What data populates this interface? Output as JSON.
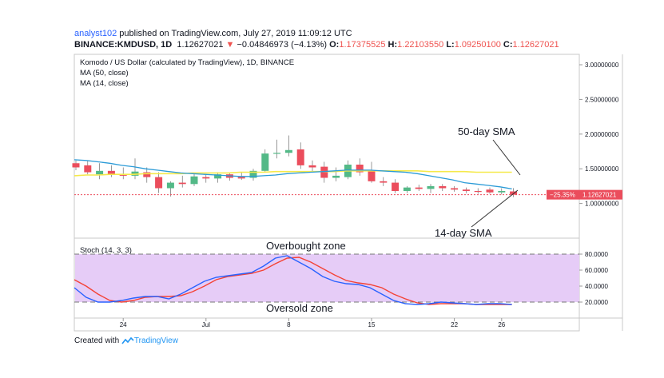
{
  "header": {
    "author": "analyst102",
    "published_text": " published on TradingView.com, July 27, 2019 11:09:12 UTC",
    "symbol": "BINANCE:KMDUSD, 1D",
    "last": "1.12627021",
    "change_arrow": "▼",
    "change": "−0.04846973 (−4.13%)",
    "o_label": "O:",
    "o": "1.17375525",
    "h_label": "H:",
    "h": "1.22103550",
    "l_label": "L:",
    "l": "1.09250100",
    "c_label": "C:",
    "c": "1.12627021"
  },
  "legend": {
    "title": "Komodo / US Dollar (calculated by TradingView), 1D, BINANCE",
    "ma50": "MA (50, close)",
    "ma14": "MA (14, close)",
    "stoch": "Stoch (14, 3, 3)"
  },
  "annotations": {
    "sma50": "50-day SMA",
    "sma14": "14-day SMA",
    "overbought": "Overbought zone",
    "oversold": "Oversold zone"
  },
  "price_tags": {
    "pct": "−25.35%",
    "price": "1.12627021"
  },
  "footer": {
    "created_with": "Created with",
    "brand": "TradingView"
  },
  "colors": {
    "up": "#53b987",
    "down": "#eb4d5c",
    "ma50": "#f5e94a",
    "ma14": "#2b9bd7",
    "stoch_k": "#2962ff",
    "stoch_d": "#f44336",
    "stoch_bg": "#e6ccf7",
    "lastline": "#eb4d5c"
  },
  "chart_data": [
    {
      "type": "candlestick",
      "title": "Komodo / US Dollar (calculated by TradingView), 1D, BINANCE",
      "x_ticks": [
        "24",
        "Jul",
        "8",
        "15",
        "22",
        "26"
      ],
      "y_ticks": [
        "1.00000000",
        "1.50000000",
        "2.00000000",
        "2.50000000",
        "3.00000000"
      ],
      "ylim": [
        0.5,
        3.15
      ],
      "last_price": 1.12627021,
      "candles": [
        {
          "d": "Jun 20",
          "o": 1.58,
          "h": 1.62,
          "l": 1.48,
          "c": 1.52
        },
        {
          "d": "Jun 21",
          "o": 1.55,
          "h": 1.62,
          "l": 1.42,
          "c": 1.45
        },
        {
          "d": "Jun 22",
          "o": 1.42,
          "h": 1.58,
          "l": 1.35,
          "c": 1.47
        },
        {
          "d": "Jun 23",
          "o": 1.47,
          "h": 1.55,
          "l": 1.38,
          "c": 1.42
        },
        {
          "d": "Jun 24",
          "o": 1.42,
          "h": 1.52,
          "l": 1.35,
          "c": 1.4
        },
        {
          "d": "Jun 25",
          "o": 1.4,
          "h": 1.65,
          "l": 1.35,
          "c": 1.46
        },
        {
          "d": "Jun 26",
          "o": 1.45,
          "h": 1.52,
          "l": 1.3,
          "c": 1.38
        },
        {
          "d": "Jun 27",
          "o": 1.38,
          "h": 1.45,
          "l": 1.15,
          "c": 1.22
        },
        {
          "d": "Jun 28",
          "o": 1.22,
          "h": 1.32,
          "l": 1.1,
          "c": 1.3
        },
        {
          "d": "Jun 29",
          "o": 1.3,
          "h": 1.4,
          "l": 1.23,
          "c": 1.28
        },
        {
          "d": "Jun 30",
          "o": 1.28,
          "h": 1.44,
          "l": 1.25,
          "c": 1.39
        },
        {
          "d": "Jul 1",
          "o": 1.38,
          "h": 1.42,
          "l": 1.3,
          "c": 1.36
        },
        {
          "d": "Jul 2",
          "o": 1.36,
          "h": 1.45,
          "l": 1.3,
          "c": 1.42
        },
        {
          "d": "Jul 3",
          "o": 1.42,
          "h": 1.45,
          "l": 1.33,
          "c": 1.37
        },
        {
          "d": "Jul 4",
          "o": 1.38,
          "h": 1.45,
          "l": 1.34,
          "c": 1.36
        },
        {
          "d": "Jul 5",
          "o": 1.37,
          "h": 1.5,
          "l": 1.33,
          "c": 1.47
        },
        {
          "d": "Jul 6",
          "o": 1.47,
          "h": 1.78,
          "l": 1.45,
          "c": 1.72
        },
        {
          "d": "Jul 7",
          "o": 1.72,
          "h": 1.92,
          "l": 1.65,
          "c": 1.73
        },
        {
          "d": "Jul 8",
          "o": 1.73,
          "h": 1.98,
          "l": 1.68,
          "c": 1.77
        },
        {
          "d": "Jul 9",
          "o": 1.78,
          "h": 1.88,
          "l": 1.5,
          "c": 1.55
        },
        {
          "d": "Jul 10",
          "o": 1.55,
          "h": 1.62,
          "l": 1.45,
          "c": 1.52
        },
        {
          "d": "Jul 11",
          "o": 1.53,
          "h": 1.6,
          "l": 1.3,
          "c": 1.37
        },
        {
          "d": "Jul 12",
          "o": 1.37,
          "h": 1.52,
          "l": 1.32,
          "c": 1.4
        },
        {
          "d": "Jul 13",
          "o": 1.38,
          "h": 1.62,
          "l": 1.35,
          "c": 1.56
        },
        {
          "d": "Jul 14",
          "o": 1.56,
          "h": 1.65,
          "l": 1.4,
          "c": 1.45
        },
        {
          "d": "Jul 15",
          "o": 1.47,
          "h": 1.6,
          "l": 1.3,
          "c": 1.32
        },
        {
          "d": "Jul 16",
          "o": 1.32,
          "h": 1.38,
          "l": 1.25,
          "c": 1.3
        },
        {
          "d": "Jul 17",
          "o": 1.3,
          "h": 1.35,
          "l": 1.15,
          "c": 1.18
        },
        {
          "d": "Jul 18",
          "o": 1.18,
          "h": 1.25,
          "l": 1.15,
          "c": 1.23
        },
        {
          "d": "Jul 19",
          "o": 1.23,
          "h": 1.27,
          "l": 1.18,
          "c": 1.21
        },
        {
          "d": "Jul 20",
          "o": 1.21,
          "h": 1.28,
          "l": 1.15,
          "c": 1.25
        },
        {
          "d": "Jul 21",
          "o": 1.25,
          "h": 1.28,
          "l": 1.18,
          "c": 1.22
        },
        {
          "d": "Jul 22",
          "o": 1.22,
          "h": 1.25,
          "l": 1.17,
          "c": 1.2
        },
        {
          "d": "Jul 23",
          "o": 1.2,
          "h": 1.23,
          "l": 1.15,
          "c": 1.18
        },
        {
          "d": "Jul 24",
          "o": 1.18,
          "h": 1.22,
          "l": 1.14,
          "c": 1.17
        },
        {
          "d": "Jul 25",
          "o": 1.2,
          "h": 1.23,
          "l": 1.14,
          "c": 1.16
        },
        {
          "d": "Jul 26",
          "o": 1.16,
          "h": 1.22,
          "l": 1.13,
          "c": 1.18
        },
        {
          "d": "Jul 27",
          "o": 1.17375525,
          "h": 1.2210355,
          "l": 1.092501,
          "c": 1.12627021
        }
      ],
      "series": [
        {
          "name": "MA (50, close)",
          "values": [
            1.4,
            1.41,
            1.41,
            1.42,
            1.42,
            1.42,
            1.43,
            1.43,
            1.43,
            1.43,
            1.44,
            1.44,
            1.44,
            1.44,
            1.45,
            1.45,
            1.45,
            1.46,
            1.46,
            1.46,
            1.46,
            1.46,
            1.46,
            1.47,
            1.47,
            1.47,
            1.47,
            1.47,
            1.47,
            1.47,
            1.46,
            1.46,
            1.46,
            1.46,
            1.45,
            1.45,
            1.45,
            1.45
          ]
        },
        {
          "name": "MA (14, close)",
          "values": [
            1.63,
            1.62,
            1.6,
            1.58,
            1.55,
            1.53,
            1.5,
            1.48,
            1.46,
            1.44,
            1.43,
            1.42,
            1.41,
            1.4,
            1.39,
            1.39,
            1.4,
            1.41,
            1.43,
            1.44,
            1.45,
            1.46,
            1.47,
            1.48,
            1.48,
            1.48,
            1.47,
            1.46,
            1.45,
            1.43,
            1.4,
            1.37,
            1.34,
            1.3,
            1.28,
            1.26,
            1.24,
            1.21
          ]
        }
      ]
    },
    {
      "type": "line",
      "title": "Stoch (14, 3, 3)",
      "y_ticks": [
        "20.0000",
        "40.0000",
        "60.0000",
        "80.0000"
      ],
      "ylim": [
        0,
        100
      ],
      "overbought": 80,
      "oversold": 20,
      "series": [
        {
          "name": "%K",
          "values": [
            38,
            26,
            20,
            20,
            22,
            25,
            27,
            27,
            24,
            30,
            38,
            46,
            51,
            53,
            55,
            57,
            65,
            75,
            78,
            70,
            62,
            52,
            46,
            43,
            42,
            38,
            30,
            22,
            18,
            17,
            18,
            20,
            19,
            18,
            17,
            18,
            18,
            17
          ]
        },
        {
          "name": "%D",
          "values": [
            48,
            40,
            30,
            22,
            20,
            22,
            26,
            27,
            27,
            28,
            33,
            40,
            48,
            52,
            54,
            56,
            60,
            68,
            75,
            76,
            70,
            62,
            54,
            47,
            44,
            42,
            38,
            30,
            24,
            19,
            17,
            18,
            18,
            18,
            17,
            17,
            17,
            17
          ]
        }
      ]
    }
  ]
}
